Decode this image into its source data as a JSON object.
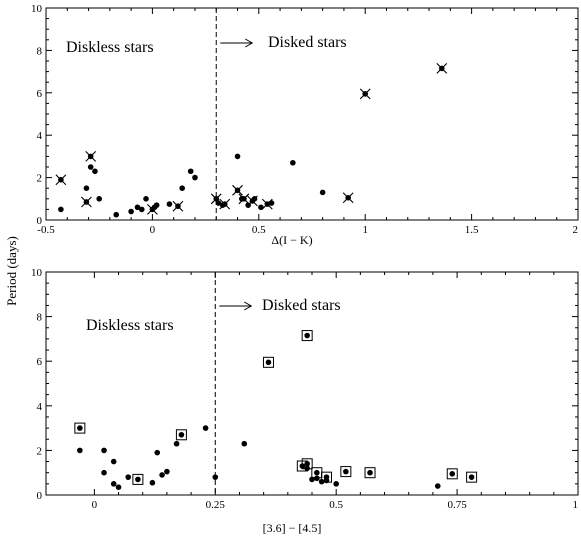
{
  "ylabel": "Period (days)",
  "chart_data": [
    {
      "type": "scatter",
      "xlabel": "Δ(I − K)",
      "ylabel": "Period (days)",
      "xlim": [
        -0.5,
        2
      ],
      "ylim": [
        0,
        10
      ],
      "xticks": [
        -0.5,
        0,
        0.5,
        1,
        1.5,
        2
      ],
      "xtick_labels": [
        "-0.5",
        "0",
        "0.5",
        "1",
        "1.5",
        "2"
      ],
      "yticks": [
        0,
        2,
        4,
        6,
        8,
        10
      ],
      "ytick_labels": [
        "0",
        "2",
        "4",
        "6",
        "8",
        "10"
      ],
      "divider_x": 0.3,
      "annotations": {
        "left": "Diskless stars",
        "right": "Disked stars"
      },
      "marker_legend": {
        "dot": "filled circle",
        "x": "filled circle with cross"
      },
      "series": [
        {
          "marker": "dot",
          "points": [
            [
              -0.43,
              0.5
            ],
            [
              -0.31,
              1.5
            ],
            [
              -0.29,
              2.5
            ],
            [
              -0.27,
              2.3
            ],
            [
              -0.25,
              1.0
            ],
            [
              -0.17,
              0.25
            ],
            [
              -0.1,
              0.4
            ],
            [
              -0.07,
              0.6
            ],
            [
              -0.05,
              0.5
            ],
            [
              -0.03,
              1.0
            ],
            [
              0.01,
              0.6
            ],
            [
              0.02,
              0.7
            ],
            [
              0.08,
              0.75
            ],
            [
              0.14,
              1.5
            ],
            [
              0.18,
              2.3
            ],
            [
              0.2,
              2.0
            ],
            [
              0.31,
              0.8
            ],
            [
              0.33,
              0.7
            ],
            [
              0.4,
              3.0
            ],
            [
              0.42,
              1.0
            ],
            [
              0.45,
              0.7
            ],
            [
              0.48,
              1.0
            ],
            [
              0.51,
              0.6
            ],
            [
              0.56,
              0.8
            ],
            [
              0.66,
              2.7
            ],
            [
              0.8,
              1.3
            ]
          ]
        },
        {
          "marker": "x",
          "points": [
            [
              -0.43,
              1.9
            ],
            [
              -0.31,
              0.85
            ],
            [
              -0.29,
              3.0
            ],
            [
              0.0,
              0.5
            ],
            [
              0.12,
              0.65
            ],
            [
              0.3,
              1.0
            ],
            [
              0.34,
              0.75
            ],
            [
              0.4,
              1.4
            ],
            [
              0.43,
              1.0
            ],
            [
              0.47,
              0.9
            ],
            [
              0.54,
              0.75
            ],
            [
              0.92,
              1.05
            ],
            [
              1.0,
              5.95
            ],
            [
              1.36,
              7.15
            ]
          ]
        }
      ]
    },
    {
      "type": "scatter",
      "xlabel": "[3.6] − [4.5]",
      "ylabel": "Period (days)",
      "xlim": [
        -0.1,
        1
      ],
      "ylim": [
        0,
        10
      ],
      "xticks": [
        0,
        0.25,
        0.5,
        0.75,
        1
      ],
      "xtick_labels": [
        "0",
        "0.25",
        "0.5",
        "0.75",
        "1"
      ],
      "yticks": [
        0,
        2,
        4,
        6,
        8,
        10
      ],
      "ytick_labels": [
        "0",
        "2",
        "4",
        "6",
        "8",
        "10"
      ],
      "divider_x": 0.25,
      "annotations": {
        "left": "Diskless stars",
        "right": "Disked stars"
      },
      "marker_legend": {
        "dot": "filled circle",
        "box": "filled circle in square"
      },
      "series": [
        {
          "marker": "dot",
          "points": [
            [
              -0.03,
              2.0
            ],
            [
              0.02,
              2.0
            ],
            [
              0.02,
              1.0
            ],
            [
              0.04,
              0.5
            ],
            [
              0.04,
              1.5
            ],
            [
              0.05,
              0.35
            ],
            [
              0.07,
              0.8
            ],
            [
              0.12,
              0.55
            ],
            [
              0.13,
              1.9
            ],
            [
              0.14,
              0.9
            ],
            [
              0.15,
              1.05
            ],
            [
              0.17,
              2.3
            ],
            [
              0.23,
              3.0
            ],
            [
              0.25,
              0.8
            ],
            [
              0.31,
              2.3
            ],
            [
              0.44,
              1.2
            ],
            [
              0.45,
              0.7
            ],
            [
              0.46,
              0.75
            ],
            [
              0.47,
              0.6
            ],
            [
              0.48,
              0.65
            ],
            [
              0.5,
              0.5
            ],
            [
              0.71,
              0.4
            ]
          ]
        },
        {
          "marker": "box",
          "points": [
            [
              -0.03,
              3.0
            ],
            [
              0.09,
              0.7
            ],
            [
              0.18,
              2.7
            ],
            [
              0.36,
              5.95
            ],
            [
              0.43,
              1.3
            ],
            [
              0.44,
              1.4
            ],
            [
              0.44,
              7.15
            ],
            [
              0.46,
              1.0
            ],
            [
              0.48,
              0.8
            ],
            [
              0.52,
              1.05
            ],
            [
              0.57,
              1.0
            ],
            [
              0.74,
              0.95
            ],
            [
              0.78,
              0.8
            ]
          ]
        }
      ]
    }
  ]
}
